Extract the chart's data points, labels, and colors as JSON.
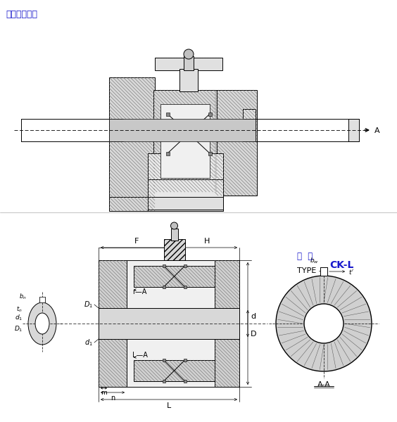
{
  "title_top": "安装参考范例",
  "type_label1": "型  号",
  "type_label2": "CK-L",
  "type_label3": "TYPE",
  "bg_color": "#ffffff",
  "blue_color": "#1a1acc",
  "black": "#000000",
  "gray_hatch": "#c8c8c8",
  "gray_light": "#e8e8e8",
  "gray_fill": "#d8d8d8"
}
